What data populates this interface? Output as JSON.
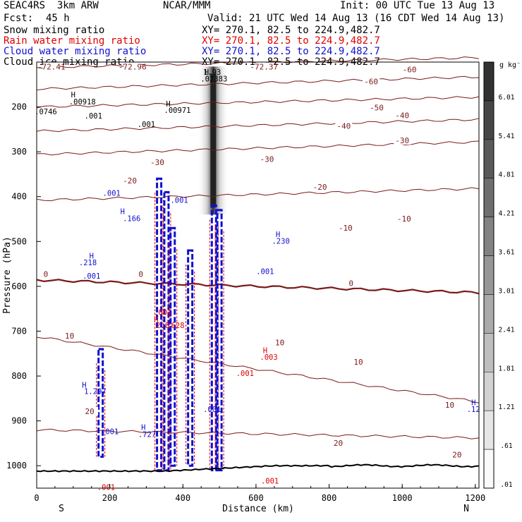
{
  "header": {
    "model": "SEAC4RS  3km ARW",
    "org": "NCAR/MMM",
    "init": "Init: 00 UTC Tue 13 Aug 13",
    "fcst_label": "Fcst:",
    "fcst_value": "45 h",
    "valid": "Valid: 21 UTC Wed 14 Aug 13 (16 CDT Wed 14 Aug 13)"
  },
  "fields": [
    {
      "name": "Snow mixing ratio",
      "xy": "XY= 270.1, 82.5 to 224.9,482.7",
      "color": "#000000"
    },
    {
      "name": "Rain water mixing ratio",
      "xy": "XY= 270.1, 82.5 to 224.9,482.7",
      "color": "#e00000"
    },
    {
      "name": "Cloud water mixing ratio",
      "xy": "XY= 270.1, 82.5 to 224.9,482.7",
      "color": "#1010d0"
    },
    {
      "name": "Cloud ice mixing ratio",
      "xy": "XY= 270.1, 82.5 to 224.9,482.7",
      "color": "#000000"
    }
  ],
  "chart_data": {
    "type": "heatmap",
    "xlabel": "Distance (km)",
    "ylabel": "Pressure (hPa)",
    "xlim": [
      0,
      1210
    ],
    "ylim": [
      1050,
      100
    ],
    "x_ticks": [
      0,
      200,
      400,
      600,
      800,
      1000,
      1200
    ],
    "y_ticks": [
      200,
      300,
      400,
      500,
      600,
      700,
      800,
      900,
      1000
    ],
    "left_end_label": "S",
    "right_end_label": "N",
    "colorbar": {
      "unit": "g kg⁻¹",
      "labels": [
        ".01",
        ".61",
        "1.21",
        "1.81",
        "2.41",
        "3.01",
        "3.61",
        "4.21",
        "4.81",
        "5.41",
        "6.01"
      ]
    },
    "temperature_isotherms": [
      {
        "temp": -60,
        "p_left": 112,
        "p_right": 90
      },
      {
        "temp": -50,
        "p_left": 160,
        "p_right": 133
      },
      {
        "temp": -40,
        "p_left": 200,
        "p_right": 178
      },
      {
        "temp": -30,
        "p_left": 254,
        "p_right": 228
      },
      {
        "temp": -20,
        "p_left": 306,
        "p_right": 278
      },
      {
        "temp": -10,
        "p_left": 408,
        "p_right": 382
      },
      {
        "temp": 0,
        "p_left": 586,
        "p_right": 614
      },
      {
        "temp": 10,
        "p_left": 712,
        "p_right": 858
      },
      {
        "temp": 20,
        "p_left": 920,
        "p_right": 938
      }
    ],
    "isotherm_labels": [
      {
        "text": "-72.41",
        "x": 40,
        "p": 112
      },
      {
        "text": "-72.96",
        "x": 262,
        "p": 112
      },
      {
        "text": "-72.37",
        "x": 622,
        "p": 112
      },
      {
        "text": "-60",
        "x": 915,
        "p": 145
      },
      {
        "text": "-60",
        "x": 1020,
        "p": 118
      },
      {
        "text": "-50",
        "x": 930,
        "p": 203
      },
      {
        "text": "-40",
        "x": 840,
        "p": 244
      },
      {
        "text": "-40",
        "x": 1000,
        "p": 220
      },
      {
        "text": "-30",
        "x": 330,
        "p": 325
      },
      {
        "text": "-30",
        "x": 630,
        "p": 318
      },
      {
        "text": "-30",
        "x": 1000,
        "p": 276
      },
      {
        "text": "-20",
        "x": 255,
        "p": 366
      },
      {
        "text": "-20",
        "x": 775,
        "p": 380
      },
      {
        "text": "-10",
        "x": 845,
        "p": 471
      },
      {
        "text": "-10",
        "x": 1005,
        "p": 451
      },
      {
        "text": "0",
        "x": 25,
        "p": 574
      },
      {
        "text": "0",
        "x": 285,
        "p": 574
      },
      {
        "text": "0",
        "x": 860,
        "p": 595
      },
      {
        "text": "10",
        "x": 90,
        "p": 712
      },
      {
        "text": "10",
        "x": 665,
        "p": 727
      },
      {
        "text": "10",
        "x": 880,
        "p": 770
      },
      {
        "text": "10",
        "x": 1130,
        "p": 866
      },
      {
        "text": "20",
        "x": 145,
        "p": 880
      },
      {
        "text": "20",
        "x": 825,
        "p": 951
      },
      {
        "text": "20",
        "x": 1150,
        "p": 977
      }
    ],
    "annotations": [
      {
        "text": "H",
        "x": 100,
        "p": 179,
        "color": "#000000"
      },
      {
        "text": ".00918",
        "x": 125,
        "p": 194,
        "color": "#000000"
      },
      {
        "text": ".0746",
        "x": 25,
        "p": 216,
        "color": "#000000"
      },
      {
        "text": ".001",
        "x": 155,
        "p": 226,
        "color": "#000000"
      },
      {
        "text": "H",
        "x": 360,
        "p": 199,
        "color": "#000000"
      },
      {
        "text": ".00971",
        "x": 385,
        "p": 213,
        "color": "#000000"
      },
      {
        "text": ".001",
        "x": 300,
        "p": 245,
        "color": "#000000"
      },
      {
        "text": "H",
        "x": 465,
        "p": 128,
        "color": "#000000"
      },
      {
        "text": "1.93",
        "x": 480,
        "p": 128,
        "color": "#000000"
      },
      {
        "text": ".02383",
        "x": 485,
        "p": 143,
        "color": "#000000"
      },
      {
        "text": ".001",
        "x": 205,
        "p": 398,
        "color": "#1010d0"
      },
      {
        "text": "H",
        "x": 235,
        "p": 439,
        "color": "#1010d0"
      },
      {
        "text": ".166",
        "x": 260,
        "p": 455,
        "color": "#1010d0"
      },
      {
        "text": ".001",
        "x": 390,
        "p": 414,
        "color": "#1010d0"
      },
      {
        "text": "H",
        "x": 660,
        "p": 490,
        "color": "#1010d0"
      },
      {
        "text": ".230",
        "x": 668,
        "p": 505,
        "color": "#1010d0"
      },
      {
        "text": "H",
        "x": 150,
        "p": 538,
        "color": "#1010d0"
      },
      {
        "text": ".218",
        "x": 140,
        "p": 553,
        "color": "#1010d0"
      },
      {
        "text": ".001",
        "x": 150,
        "p": 583,
        "color": "#1010d0"
      },
      {
        "text": ".001",
        "x": 625,
        "p": 573,
        "color": "#1010d0"
      },
      {
        "text": ".001",
        "x": 345,
        "p": 664,
        "color": "#e00000"
      },
      {
        "text": "H",
        "x": 327,
        "p": 680,
        "color": "#e00000"
      },
      {
        "text": "2.8",
        "x": 345,
        "p": 693,
        "color": "#e00000"
      },
      {
        "text": ".628",
        "x": 380,
        "p": 693,
        "color": "#e00000"
      },
      {
        "text": "H",
        "x": 625,
        "p": 749,
        "color": "#e00000"
      },
      {
        "text": ".003",
        "x": 635,
        "p": 764,
        "color": "#e00000"
      },
      {
        "text": ".001",
        "x": 570,
        "p": 800,
        "color": "#e00000"
      },
      {
        "text": "H",
        "x": 130,
        "p": 826,
        "color": "#1010d0"
      },
      {
        "text": "1.297",
        "x": 160,
        "p": 840,
        "color": "#1010d0"
      },
      {
        "text": ".001",
        "x": 200,
        "p": 930,
        "color": "#1010d0"
      },
      {
        "text": "H",
        "x": 292,
        "p": 920,
        "color": "#1010d0"
      },
      {
        "text": ".727",
        "x": 302,
        "p": 936,
        "color": "#1010d0"
      },
      {
        "text": ".001",
        "x": 480,
        "p": 880,
        "color": "#1010d0"
      },
      {
        "text": ".001",
        "x": 190,
        "p": 1054,
        "color": "#e00000"
      },
      {
        "text": ".001",
        "x": 638,
        "p": 1040,
        "color": "#e00000"
      },
      {
        "text": ".12",
        "x": 1195,
        "p": 880,
        "color": "#1010d0"
      },
      {
        "text": "H",
        "x": 1195,
        "p": 865,
        "color": "#1010d0"
      }
    ],
    "storm_cores_km": [
      {
        "x": 175,
        "p_top": 740,
        "p_bot": 980,
        "kind": "cloud"
      },
      {
        "x": 335,
        "p_top": 360,
        "p_bot": 1010,
        "kind": "cloud"
      },
      {
        "x": 355,
        "p_top": 390,
        "p_bot": 1010,
        "kind": "cloud"
      },
      {
        "x": 372,
        "p_top": 470,
        "p_bot": 1000,
        "kind": "cloud"
      },
      {
        "x": 420,
        "p_top": 520,
        "p_bot": 1000,
        "kind": "cloud"
      },
      {
        "x": 485,
        "p_top": 420,
        "p_bot": 1010,
        "kind": "cloud"
      },
      {
        "x": 500,
        "p_top": 430,
        "p_bot": 1010,
        "kind": "cloud"
      }
    ],
    "snow_column": {
      "x": 483,
      "p_top": 110,
      "p_bot": 440
    }
  }
}
